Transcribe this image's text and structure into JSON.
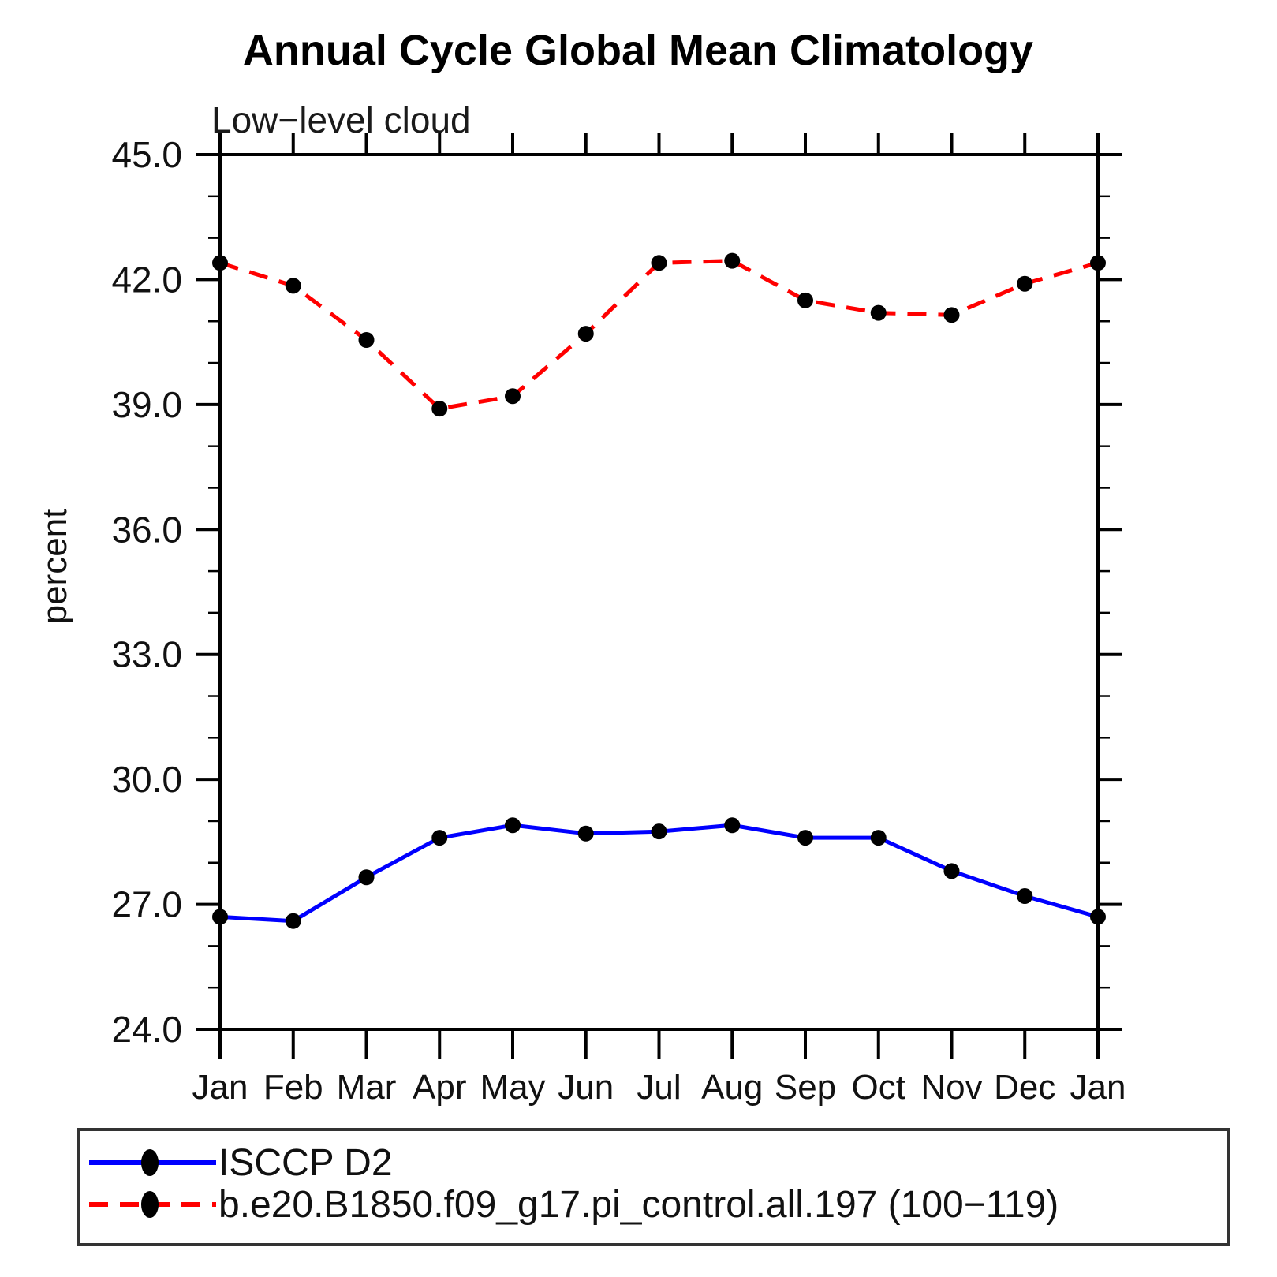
{
  "title": "Annual Cycle Global Mean Climatology",
  "subtitle": "Low−level cloud",
  "y_axis_title": "percent",
  "colors": {
    "obs_line": "#0000ff",
    "model_line": "#ff0000",
    "marker": "#000000",
    "frame": "#000000",
    "legend_border": "#333333",
    "background": "#ffffff"
  },
  "chart_data": {
    "type": "line",
    "title": "Annual Cycle Global Mean Climatology",
    "subtitle": "Low−level cloud",
    "xlabel": "",
    "ylabel": "percent",
    "categories": [
      "Jan",
      "Feb",
      "Mar",
      "Apr",
      "May",
      "Jun",
      "Jul",
      "Aug",
      "Sep",
      "Oct",
      "Nov",
      "Dec",
      "Jan"
    ],
    "ylim": [
      24.0,
      45.0
    ],
    "y_major_ticks": [
      24.0,
      27.0,
      30.0,
      33.0,
      36.0,
      39.0,
      42.0,
      45.0
    ],
    "y_tick_labels": [
      "24.0",
      "27.0",
      "30.0",
      "33.0",
      "36.0",
      "39.0",
      "42.0",
      "45.0"
    ],
    "y_minor_step": 1.0,
    "grid": false,
    "legend_position": "bottom",
    "series": [
      {
        "name": "ISCCP D2",
        "color": "#0000ff",
        "line_style": "solid",
        "marker": "black-dot",
        "values": [
          26.7,
          26.6,
          27.65,
          28.6,
          28.9,
          28.7,
          28.75,
          28.9,
          28.6,
          28.6,
          27.8,
          27.2,
          26.7
        ]
      },
      {
        "name": "b.e20.B1850.f09_g17.pi_control.all.197 (100−119)",
        "color": "#ff0000",
        "line_style": "dashed",
        "marker": "black-dot",
        "values": [
          42.4,
          41.85,
          40.55,
          38.9,
          39.2,
          40.7,
          42.4,
          42.45,
          41.5,
          41.2,
          41.15,
          41.9,
          42.4
        ]
      }
    ]
  },
  "legend": {
    "entries": [
      {
        "label": "ISCCP D2"
      },
      {
        "label": "b.e20.B1850.f09_g17.pi_control.all.197 (100−119)"
      }
    ]
  }
}
